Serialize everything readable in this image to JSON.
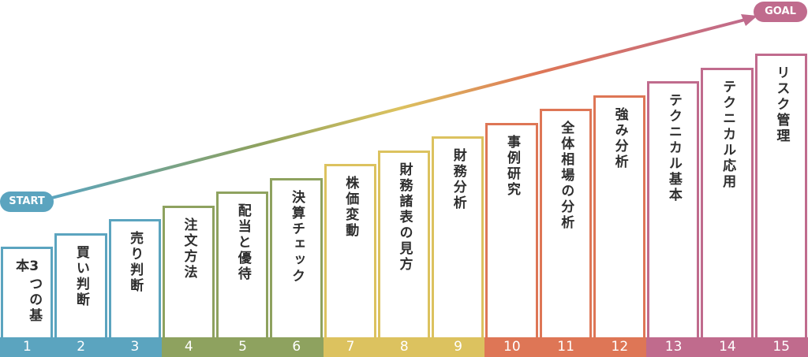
{
  "start_label": "START",
  "goal_label": "GOAL",
  "colors": {
    "group1": "#5ba4bf",
    "group2": "#8ea25f",
    "group3": "#dcc25f",
    "group4": "#de7656",
    "group5": "#c06b8d",
    "start": "#5ba4bf",
    "goal": "#c06b8d"
  },
  "steps": [
    {
      "number": "1",
      "label": "3つの基本",
      "group": 1
    },
    {
      "number": "2",
      "label": "買い判断",
      "group": 1
    },
    {
      "number": "3",
      "label": "売り判断",
      "group": 1
    },
    {
      "number": "4",
      "label": "注文方法",
      "group": 2
    },
    {
      "number": "5",
      "label": "配当と優待",
      "group": 2
    },
    {
      "number": "6",
      "label": "決算チェック",
      "group": 2
    },
    {
      "number": "7",
      "label": "株価変動",
      "group": 3
    },
    {
      "number": "8",
      "label": "財務諸表の見方",
      "group": 3
    },
    {
      "number": "9",
      "label": "財務分析",
      "group": 3
    },
    {
      "number": "10",
      "label": "事例研究",
      "group": 4
    },
    {
      "number": "11",
      "label": "全体相場の分析",
      "group": 4
    },
    {
      "number": "12",
      "label": "強み分析",
      "group": 4
    },
    {
      "number": "13",
      "label": "テクニカル基本",
      "group": 5
    },
    {
      "number": "14",
      "label": "テクニカル応用",
      "group": 5
    },
    {
      "number": "15",
      "label": "リスク管理",
      "group": 5
    }
  ]
}
